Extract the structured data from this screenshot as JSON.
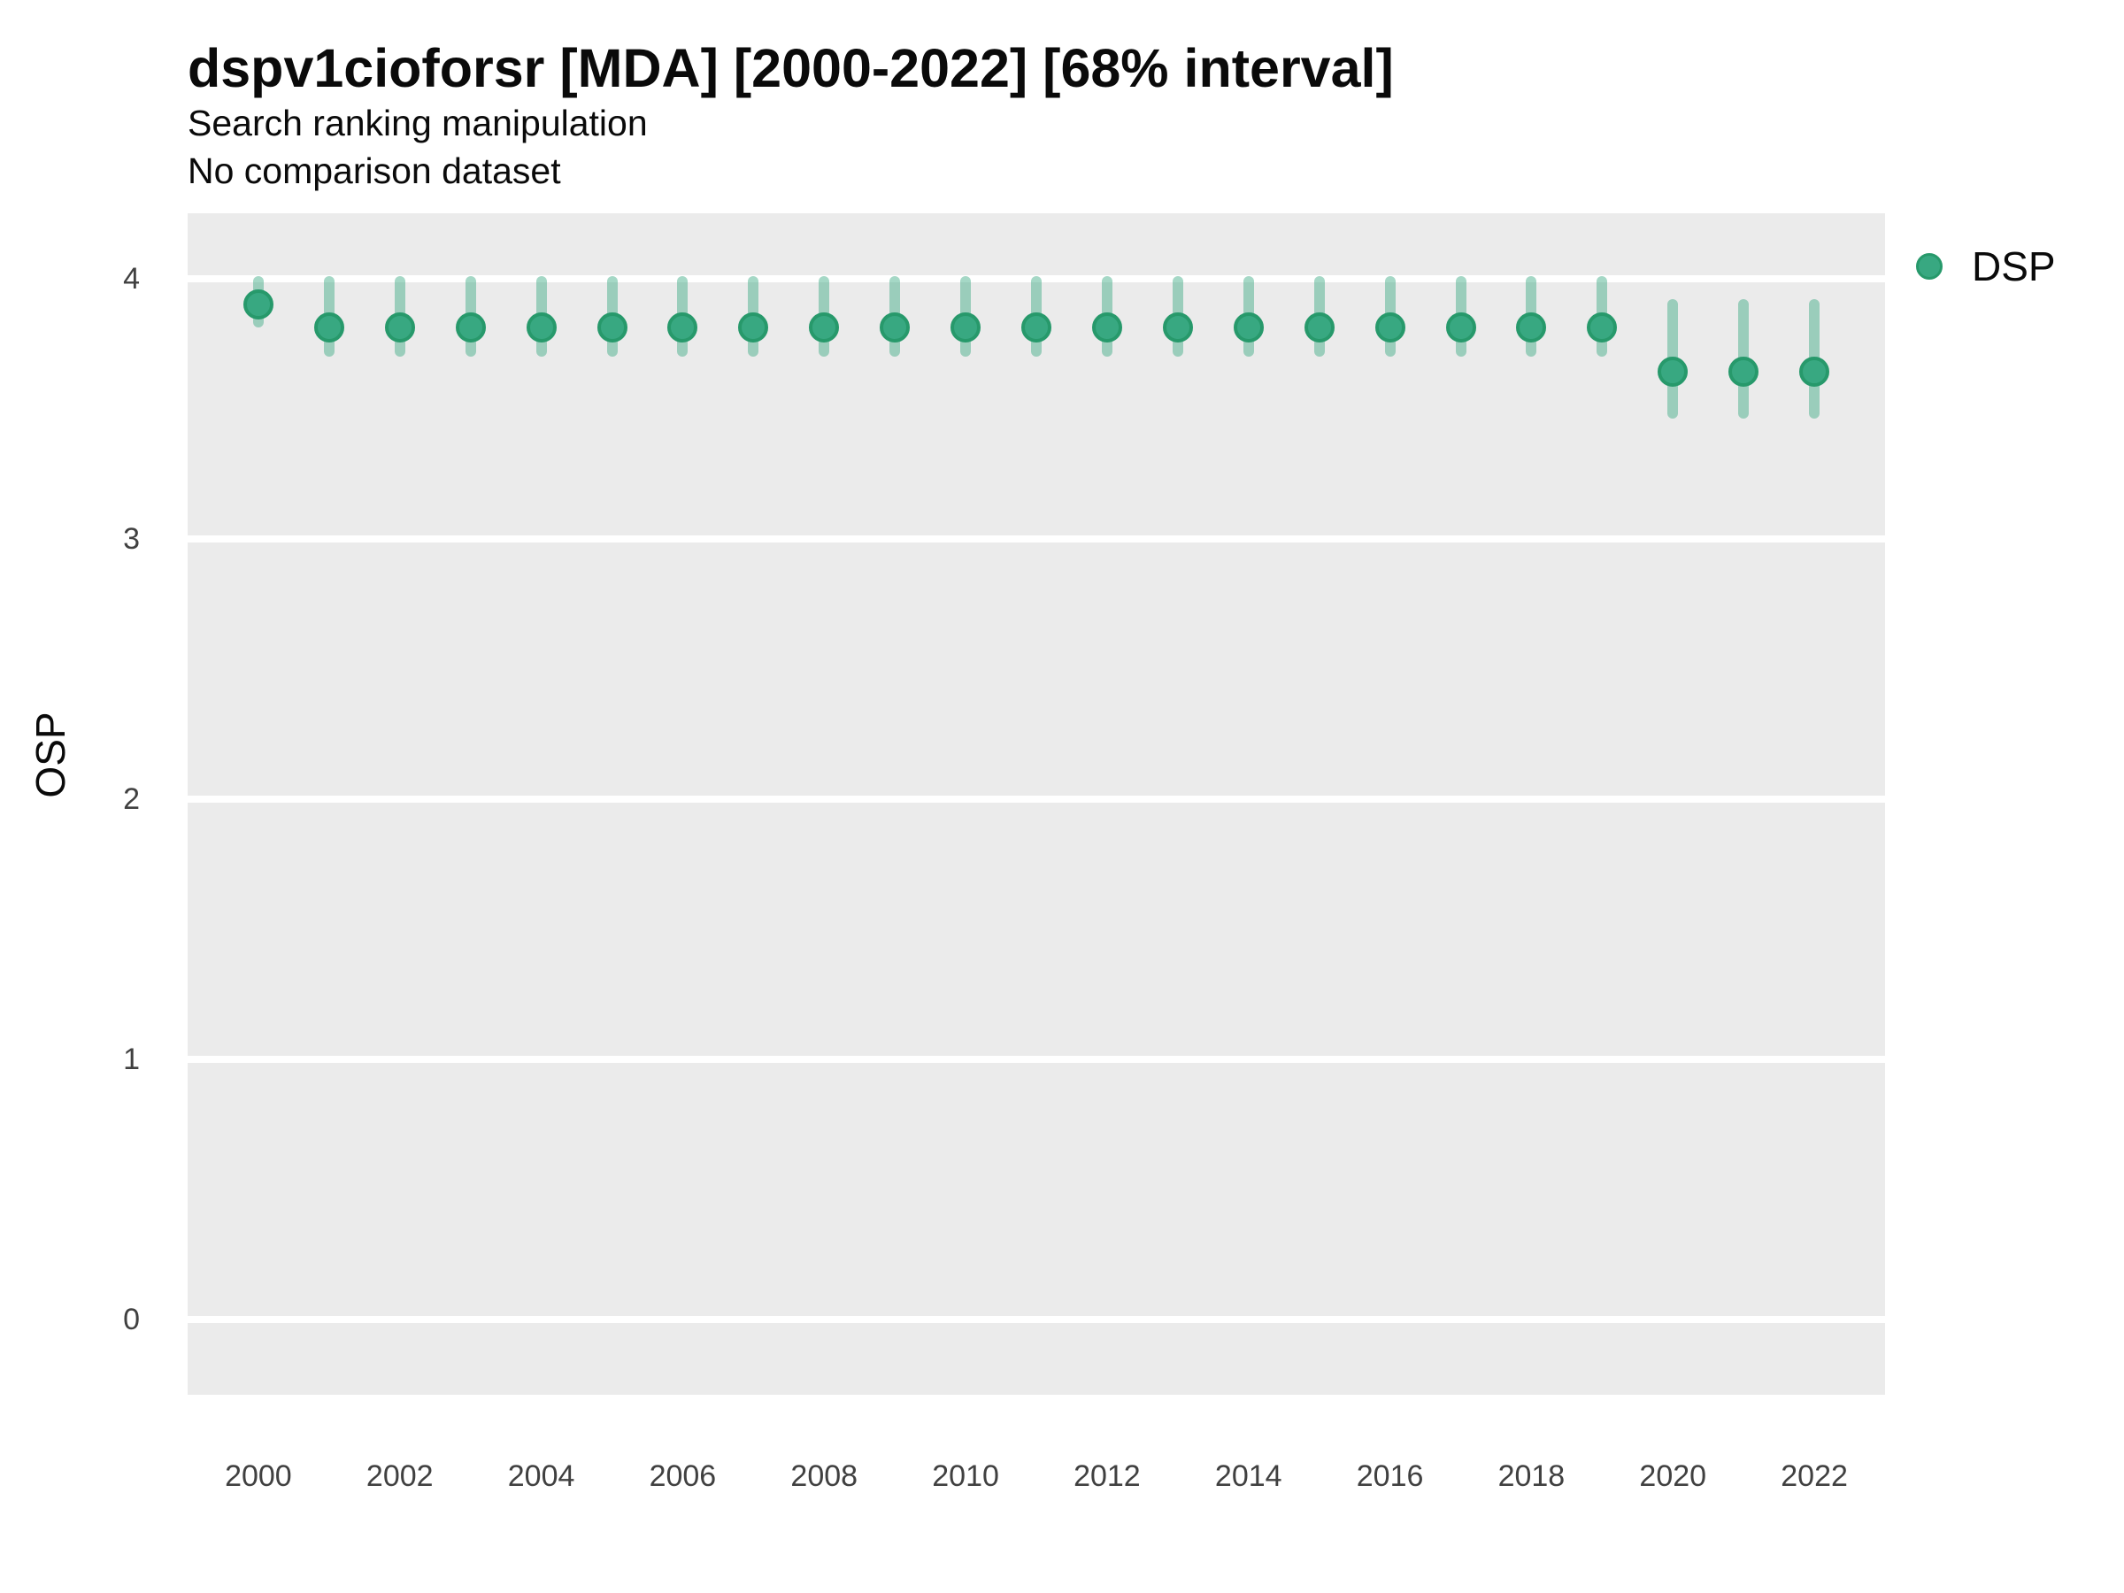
{
  "header": {
    "title": "dspv1cioforsr [MDA] [2000-2022] [68% interval]",
    "subtitle1": "Search ranking manipulation",
    "subtitle2": "No comparison dataset"
  },
  "legend": {
    "label": "DSP"
  },
  "axes": {
    "y_title": "OSP",
    "y_ticks": [
      0,
      1,
      2,
      3,
      4
    ],
    "x_ticks": [
      2000,
      2002,
      2004,
      2006,
      2008,
      2010,
      2012,
      2014,
      2016,
      2018,
      2020,
      2022
    ]
  },
  "colors": {
    "panel_background": "#ebebeb",
    "gridline": "#ffffff",
    "point_fill": "#38a881",
    "point_border": "#27996b",
    "interval_line": "rgba(56,168,129,0.45)",
    "text": "#0a0a0a",
    "tick_text": "#404040"
  },
  "chart_data": {
    "type": "scatter",
    "title": "dspv1cioforsr [MDA] [2000-2022] [68% interval]",
    "subtitle": "Search ranking manipulation / No comparison dataset",
    "xlabel": "",
    "ylabel": "OSP",
    "xlim": [
      1999,
      2023
    ],
    "ylim": [
      -0.29,
      4.25
    ],
    "grid": "horizontal-white-on-gray",
    "legend_position": "right-top",
    "interval_level": "68%",
    "series": [
      {
        "name": "DSP",
        "x": [
          2000,
          2001,
          2002,
          2003,
          2004,
          2005,
          2006,
          2007,
          2008,
          2009,
          2010,
          2011,
          2012,
          2013,
          2014,
          2015,
          2016,
          2017,
          2018,
          2019,
          2020,
          2021,
          2022
        ],
        "values": [
          3.9,
          3.81,
          3.81,
          3.81,
          3.81,
          3.81,
          3.81,
          3.81,
          3.81,
          3.81,
          3.81,
          3.81,
          3.81,
          3.81,
          3.81,
          3.81,
          3.81,
          3.81,
          3.81,
          3.81,
          3.64,
          3.64,
          3.64
        ],
        "interval_low": [
          3.81,
          3.7,
          3.7,
          3.7,
          3.7,
          3.7,
          3.7,
          3.7,
          3.7,
          3.7,
          3.7,
          3.7,
          3.7,
          3.7,
          3.7,
          3.7,
          3.7,
          3.7,
          3.7,
          3.7,
          3.46,
          3.46,
          3.46
        ],
        "interval_high": [
          4.01,
          4.01,
          4.01,
          4.01,
          4.01,
          4.01,
          4.01,
          4.01,
          4.01,
          4.01,
          4.01,
          4.01,
          4.01,
          4.01,
          4.01,
          4.01,
          4.01,
          4.01,
          4.01,
          4.01,
          3.92,
          3.92,
          3.92
        ]
      }
    ]
  }
}
